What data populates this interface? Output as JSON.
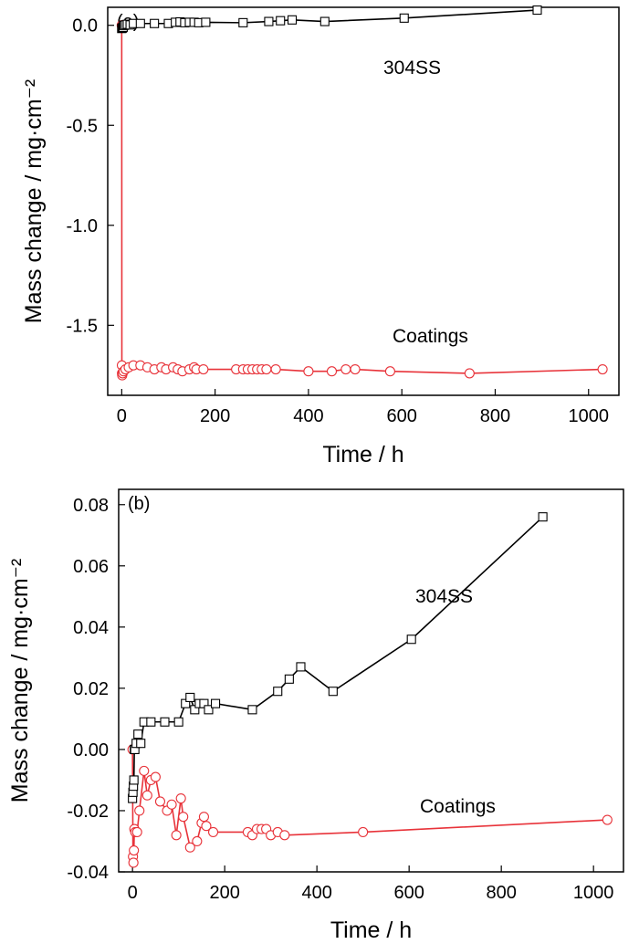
{
  "chart_data": [
    {
      "panel_label": "(a)",
      "type": "line",
      "xlabel": "Time / h",
      "ylabel": "Mass change / mg·cm⁻²",
      "xlim": [
        -30,
        1065
      ],
      "ylim": [
        -1.85,
        0.09
      ],
      "xticks": [
        0,
        200,
        400,
        600,
        800,
        1000
      ],
      "xtick_labels": [
        "0",
        "200",
        "400",
        "600",
        "800",
        "1000"
      ],
      "yticks": [
        0.0,
        -0.5,
        -1.0,
        -1.5
      ],
      "ytick_labels": [
        "0.0",
        "-0.5",
        "-1.0",
        "-1.5"
      ],
      "series": [
        {
          "name": "304SS",
          "label": "304SS",
          "color": "#000000",
          "marker": "square",
          "x": [
            0,
            1,
            2,
            3,
            4,
            5,
            8,
            12,
            18,
            25,
            40,
            70,
            100,
            115,
            125,
            135,
            145,
            155,
            165,
            180,
            260,
            315,
            340,
            365,
            435,
            605,
            890
          ],
          "y": [
            -0.016,
            -0.014,
            -0.012,
            -0.01,
            0.0,
            0.0,
            0.002,
            0.005,
            0.002,
            0.009,
            0.009,
            0.009,
            0.009,
            0.015,
            0.017,
            0.013,
            0.015,
            0.015,
            0.013,
            0.015,
            0.013,
            0.019,
            0.023,
            0.027,
            0.019,
            0.036,
            0.076
          ]
        },
        {
          "name": "Coatings",
          "label": "Coatings",
          "color": "#e8333a",
          "marker": "circle",
          "x": [
            0,
            0.3,
            0.6,
            1,
            2,
            4,
            8,
            15,
            25,
            40,
            55,
            70,
            85,
            95,
            110,
            120,
            130,
            145,
            155,
            160,
            175,
            245,
            260,
            270,
            280,
            290,
            300,
            310,
            330,
            400,
            450,
            480,
            500,
            575,
            745,
            1030
          ],
          "y": [
            0.0,
            -1.7,
            -1.74,
            -1.75,
            -1.74,
            -1.73,
            -1.72,
            -1.71,
            -1.7,
            -1.7,
            -1.71,
            -1.72,
            -1.71,
            -1.72,
            -1.71,
            -1.72,
            -1.73,
            -1.72,
            -1.71,
            -1.72,
            -1.72,
            -1.72,
            -1.72,
            -1.72,
            -1.72,
            -1.72,
            -1.72,
            -1.72,
            -1.72,
            -1.73,
            -1.73,
            -1.72,
            -1.72,
            -1.73,
            -1.74,
            -1.72
          ]
        }
      ]
    },
    {
      "panel_label": "(b)",
      "type": "line",
      "xlabel": "Time / h",
      "ylabel": "Mass change / mg·cm⁻²",
      "xlim": [
        -30,
        1065
      ],
      "ylim": [
        -0.04,
        0.085
      ],
      "xticks": [
        0,
        200,
        400,
        600,
        800,
        1000
      ],
      "xtick_labels": [
        "0",
        "200",
        "400",
        "600",
        "800",
        "1000"
      ],
      "yticks": [
        0.08,
        0.06,
        0.04,
        0.02,
        0.0,
        -0.02,
        -0.04
      ],
      "ytick_labels": [
        "0.08",
        "0.06",
        "0.04",
        "0.02",
        "0.00",
        "-0.02",
        "-0.04"
      ],
      "series": [
        {
          "name": "304SS",
          "label": "304SS",
          "color": "#000000",
          "marker": "square",
          "x": [
            0,
            1,
            2,
            3,
            4,
            5,
            8,
            12,
            18,
            25,
            40,
            70,
            100,
            115,
            125,
            135,
            145,
            155,
            165,
            180,
            260,
            315,
            340,
            365,
            435,
            605,
            890
          ],
          "y": [
            -0.016,
            -0.014,
            -0.012,
            -0.01,
            0.0,
            0.0,
            0.002,
            0.005,
            0.002,
            0.009,
            0.009,
            0.009,
            0.009,
            0.015,
            0.017,
            0.013,
            0.015,
            0.015,
            0.013,
            0.015,
            0.013,
            0.019,
            0.023,
            0.027,
            0.019,
            0.036,
            0.076
          ]
        },
        {
          "name": "Coatings",
          "label": "Coatings",
          "color": "#e8333a",
          "marker": "circle",
          "x": [
            0,
            1,
            2,
            3,
            4,
            6,
            10,
            15,
            25,
            32,
            40,
            50,
            60,
            75,
            85,
            95,
            105,
            110,
            125,
            140,
            150,
            155,
            160,
            175,
            250,
            260,
            270,
            280,
            290,
            300,
            315,
            330,
            500,
            1030
          ],
          "y": [
            0.0,
            -0.035,
            -0.037,
            -0.033,
            -0.026,
            -0.027,
            -0.027,
            -0.02,
            -0.007,
            -0.015,
            -0.01,
            -0.009,
            -0.017,
            -0.02,
            -0.018,
            -0.028,
            -0.016,
            -0.022,
            -0.032,
            -0.03,
            -0.024,
            -0.022,
            -0.025,
            -0.027,
            -0.027,
            -0.028,
            -0.026,
            -0.026,
            -0.026,
            -0.028,
            -0.027,
            -0.028,
            -0.027,
            -0.023
          ]
        }
      ]
    }
  ]
}
